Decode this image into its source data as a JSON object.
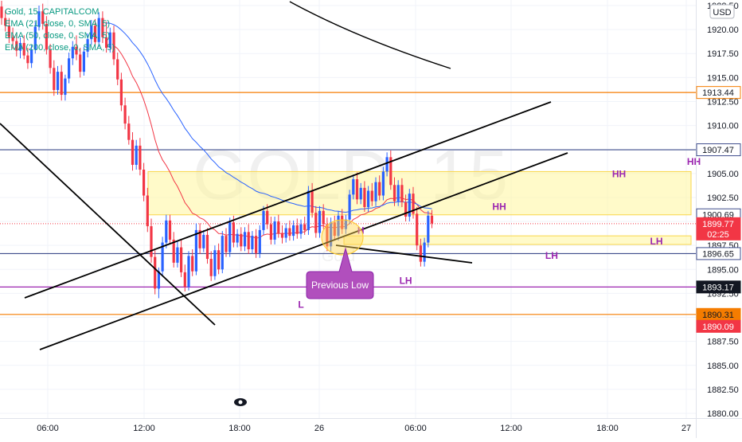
{
  "watermark": {
    "symbol": "GOLD, 15",
    "small": "Gold"
  },
  "legend": {
    "title": "Gold, 15, CAPITALCOM",
    "ema1": "EMA (21, close, 0, SMA, 5)",
    "ema2": "EMA (50, close, 0, SMA, 5)",
    "ema3": "EMA (200, close, 0, SMA, 5)"
  },
  "currency": "USD",
  "annotation": {
    "previous_low": "Previous Low"
  },
  "colors": {
    "up": "#2962ff",
    "down": "#f23645",
    "ema21": "#f23645",
    "ema50": "#2962ff",
    "ema200": "#000000",
    "orange": "#f57c00",
    "navy": "#3f4d8c",
    "purple": "#9c27b0",
    "zone": "#fff59d",
    "current_price": "#f23645"
  },
  "chart_data": {
    "type": "candlestick",
    "symbol": "Gold, 15, CAPITALCOM",
    "ylim": [
      1879.5,
      1923.0
    ],
    "y_ticks": [
      "1880.00",
      "1882.50",
      "1885.00",
      "1887.50",
      "1890.00",
      "1892.50",
      "1895.00",
      "1897.50",
      "1900.00",
      "1902.50",
      "1905.00",
      "1907.50",
      "1910.00",
      "1912.50",
      "1915.00",
      "1917.50",
      "1920.00",
      "1922.50"
    ],
    "x_ticks": [
      "06:00",
      "12:00",
      "18:00",
      "26",
      "06:00",
      "12:00",
      "18:00",
      "27"
    ],
    "price_labels": [
      {
        "value": "1913.44",
        "style": "orange-outline"
      },
      {
        "value": "1907.47",
        "style": "navy-outline"
      },
      {
        "value": "1900.69",
        "style": "navy-outline"
      },
      {
        "value": "1899.77",
        "sub": "02:25",
        "style": "red-fill"
      },
      {
        "value": "1896.65",
        "style": "navy-outline"
      },
      {
        "value": "1893.17",
        "style": "black-fill"
      },
      {
        "value": "1890.31",
        "style": "orange-fill"
      },
      {
        "value": "1890.09",
        "style": "red-fill"
      }
    ],
    "horizontal_lines": [
      {
        "y": 1913.44,
        "color": "orange"
      },
      {
        "y": 1907.47,
        "color": "navy"
      },
      {
        "y": 1896.65,
        "color": "navy"
      },
      {
        "y": 1893.17,
        "color": "purple"
      },
      {
        "y": 1890.31,
        "color": "orange"
      }
    ],
    "zones": [
      {
        "y1": 1900.69,
        "y2": 1905.2
      },
      {
        "y1": 1897.6,
        "y2": 1898.5
      }
    ],
    "swing_labels": [
      {
        "text": "HH",
        "t": 133,
        "y": 1901.2
      },
      {
        "text": "HH",
        "t": 165,
        "y": 1904.6
      },
      {
        "text": "HH",
        "t": 185,
        "y": 1905.9
      },
      {
        "text": "HH",
        "t": 210,
        "y": 1908.2
      },
      {
        "text": "H",
        "t": 96,
        "y": 1898.7
      },
      {
        "text": "LH",
        "t": 108,
        "y": 1893.5
      },
      {
        "text": "LH",
        "t": 147,
        "y": 1896.1
      },
      {
        "text": "LH",
        "t": 175,
        "y": 1897.6
      },
      {
        "text": "LH",
        "t": 202,
        "y": 1900.0
      },
      {
        "text": "L",
        "t": 80,
        "y": 1891.0
      }
    ],
    "candles": [
      {
        "o": 1922.4,
        "h": 1923.0,
        "l": 1920.5,
        "c": 1921.2
      },
      {
        "o": 1921.2,
        "h": 1922.0,
        "l": 1919.8,
        "c": 1920.4
      },
      {
        "o": 1920.4,
        "h": 1921.2,
        "l": 1918.6,
        "c": 1919.2
      },
      {
        "o": 1919.2,
        "h": 1920.2,
        "l": 1918.0,
        "c": 1918.8
      },
      {
        "o": 1918.8,
        "h": 1919.5,
        "l": 1917.2,
        "c": 1917.8
      },
      {
        "o": 1917.8,
        "h": 1919.2,
        "l": 1917.0,
        "c": 1918.6
      },
      {
        "o": 1918.6,
        "h": 1919.4,
        "l": 1916.9,
        "c": 1917.3
      },
      {
        "o": 1917.3,
        "h": 1918.1,
        "l": 1915.9,
        "c": 1916.5
      },
      {
        "o": 1916.5,
        "h": 1918.4,
        "l": 1916.0,
        "c": 1917.9
      },
      {
        "o": 1917.9,
        "h": 1920.8,
        "l": 1917.5,
        "c": 1920.3
      },
      {
        "o": 1920.3,
        "h": 1922.5,
        "l": 1919.9,
        "c": 1921.9
      },
      {
        "o": 1921.9,
        "h": 1922.7,
        "l": 1920.0,
        "c": 1920.6
      },
      {
        "o": 1920.6,
        "h": 1921.4,
        "l": 1917.4,
        "c": 1917.9
      },
      {
        "o": 1917.9,
        "h": 1918.5,
        "l": 1915.4,
        "c": 1916.0
      },
      {
        "o": 1916.0,
        "h": 1916.8,
        "l": 1913.1,
        "c": 1913.7
      },
      {
        "o": 1913.7,
        "h": 1916.2,
        "l": 1913.2,
        "c": 1915.6
      },
      {
        "o": 1915.6,
        "h": 1916.3,
        "l": 1912.6,
        "c": 1913.2
      },
      {
        "o": 1913.2,
        "h": 1915.3,
        "l": 1912.6,
        "c": 1914.9
      },
      {
        "o": 1914.9,
        "h": 1917.6,
        "l": 1914.4,
        "c": 1917.0
      },
      {
        "o": 1917.0,
        "h": 1918.8,
        "l": 1916.3,
        "c": 1918.2
      },
      {
        "o": 1918.2,
        "h": 1919.4,
        "l": 1916.8,
        "c": 1917.4
      },
      {
        "o": 1917.4,
        "h": 1918.1,
        "l": 1915.0,
        "c": 1915.6
      },
      {
        "o": 1915.6,
        "h": 1918.2,
        "l": 1915.2,
        "c": 1917.7
      },
      {
        "o": 1917.7,
        "h": 1919.6,
        "l": 1917.1,
        "c": 1919.0
      },
      {
        "o": 1919.0,
        "h": 1921.0,
        "l": 1918.4,
        "c": 1920.4
      },
      {
        "o": 1920.4,
        "h": 1921.1,
        "l": 1918.1,
        "c": 1918.7
      },
      {
        "o": 1918.7,
        "h": 1921.8,
        "l": 1918.2,
        "c": 1921.2
      },
      {
        "o": 1921.2,
        "h": 1921.9,
        "l": 1918.6,
        "c": 1919.2
      },
      {
        "o": 1919.2,
        "h": 1920.8,
        "l": 1917.6,
        "c": 1918.1
      },
      {
        "o": 1918.1,
        "h": 1920.2,
        "l": 1917.6,
        "c": 1919.7
      },
      {
        "o": 1919.7,
        "h": 1920.4,
        "l": 1916.3,
        "c": 1916.9
      },
      {
        "o": 1916.9,
        "h": 1917.6,
        "l": 1914.2,
        "c": 1914.8
      },
      {
        "o": 1914.8,
        "h": 1915.5,
        "l": 1911.5,
        "c": 1912.1
      },
      {
        "o": 1912.1,
        "h": 1912.9,
        "l": 1909.6,
        "c": 1910.2
      },
      {
        "o": 1910.2,
        "h": 1911.0,
        "l": 1908.0,
        "c": 1908.5
      },
      {
        "o": 1908.5,
        "h": 1909.3,
        "l": 1905.3,
        "c": 1905.9
      },
      {
        "o": 1905.9,
        "h": 1908.5,
        "l": 1905.4,
        "c": 1907.9
      },
      {
        "o": 1907.9,
        "h": 1908.7,
        "l": 1904.8,
        "c": 1905.4
      },
      {
        "o": 1905.4,
        "h": 1906.1,
        "l": 1902.1,
        "c": 1902.7
      },
      {
        "o": 1902.7,
        "h": 1903.5,
        "l": 1898.9,
        "c": 1899.5
      },
      {
        "o": 1899.5,
        "h": 1900.3,
        "l": 1895.7,
        "c": 1896.3
      },
      {
        "o": 1896.3,
        "h": 1897.0,
        "l": 1892.4,
        "c": 1893.0
      },
      {
        "o": 1893.0,
        "h": 1895.2,
        "l": 1892.0,
        "c": 1894.8
      },
      {
        "o": 1894.8,
        "h": 1898.4,
        "l": 1894.3,
        "c": 1897.8
      },
      {
        "o": 1897.8,
        "h": 1900.7,
        "l": 1897.2,
        "c": 1900.1
      },
      {
        "o": 1900.1,
        "h": 1900.7,
        "l": 1897.6,
        "c": 1898.1
      },
      {
        "o": 1898.1,
        "h": 1898.9,
        "l": 1895.2,
        "c": 1895.7
      },
      {
        "o": 1895.7,
        "h": 1897.9,
        "l": 1895.2,
        "c": 1897.3
      },
      {
        "o": 1897.3,
        "h": 1898.1,
        "l": 1894.2,
        "c": 1894.7
      },
      {
        "o": 1894.7,
        "h": 1895.5,
        "l": 1892.7,
        "c": 1893.2
      },
      {
        "o": 1893.2,
        "h": 1896.9,
        "l": 1892.8,
        "c": 1896.4
      },
      {
        "o": 1896.4,
        "h": 1897.1,
        "l": 1894.3,
        "c": 1894.8
      },
      {
        "o": 1894.8,
        "h": 1899.8,
        "l": 1894.4,
        "c": 1899.1
      },
      {
        "o": 1899.1,
        "h": 1899.8,
        "l": 1896.6,
        "c": 1897.2
      },
      {
        "o": 1897.2,
        "h": 1899.1,
        "l": 1896.8,
        "c": 1898.6
      },
      {
        "o": 1898.6,
        "h": 1899.3,
        "l": 1895.6,
        "c": 1896.1
      },
      {
        "o": 1896.1,
        "h": 1896.9,
        "l": 1893.8,
        "c": 1894.3
      },
      {
        "o": 1894.3,
        "h": 1897.5,
        "l": 1893.9,
        "c": 1897.0
      },
      {
        "o": 1897.0,
        "h": 1897.7,
        "l": 1894.5,
        "c": 1895.0
      },
      {
        "o": 1895.0,
        "h": 1899.0,
        "l": 1894.6,
        "c": 1898.5
      },
      {
        "o": 1898.5,
        "h": 1899.3,
        "l": 1896.3,
        "c": 1896.8
      },
      {
        "o": 1896.8,
        "h": 1900.4,
        "l": 1896.3,
        "c": 1899.9
      },
      {
        "o": 1899.9,
        "h": 1900.6,
        "l": 1897.3,
        "c": 1897.8
      },
      {
        "o": 1897.8,
        "h": 1899.2,
        "l": 1897.3,
        "c": 1898.7
      },
      {
        "o": 1898.7,
        "h": 1899.4,
        "l": 1896.9,
        "c": 1897.4
      },
      {
        "o": 1897.4,
        "h": 1899.4,
        "l": 1896.9,
        "c": 1898.9
      },
      {
        "o": 1898.9,
        "h": 1899.7,
        "l": 1896.6,
        "c": 1897.1
      },
      {
        "o": 1897.1,
        "h": 1899.0,
        "l": 1896.6,
        "c": 1898.5
      },
      {
        "o": 1898.5,
        "h": 1899.2,
        "l": 1896.2,
        "c": 1896.7
      },
      {
        "o": 1896.7,
        "h": 1899.6,
        "l": 1896.2,
        "c": 1899.1
      },
      {
        "o": 1899.1,
        "h": 1901.6,
        "l": 1898.6,
        "c": 1901.1
      },
      {
        "o": 1901.1,
        "h": 1901.8,
        "l": 1899.2,
        "c": 1899.7
      },
      {
        "o": 1899.7,
        "h": 1900.5,
        "l": 1897.6,
        "c": 1898.1
      },
      {
        "o": 1898.1,
        "h": 1900.5,
        "l": 1897.6,
        "c": 1900.0
      },
      {
        "o": 1900.0,
        "h": 1900.7,
        "l": 1898.3,
        "c": 1898.8
      },
      {
        "o": 1898.8,
        "h": 1899.6,
        "l": 1897.7,
        "c": 1898.3
      },
      {
        "o": 1898.3,
        "h": 1899.8,
        "l": 1897.8,
        "c": 1899.3
      },
      {
        "o": 1899.3,
        "h": 1900.1,
        "l": 1898.0,
        "c": 1898.5
      },
      {
        "o": 1898.5,
        "h": 1900.1,
        "l": 1898.0,
        "c": 1899.6
      },
      {
        "o": 1899.6,
        "h": 1900.3,
        "l": 1898.2,
        "c": 1898.7
      },
      {
        "o": 1898.7,
        "h": 1900.2,
        "l": 1898.2,
        "c": 1899.7
      },
      {
        "o": 1899.7,
        "h": 1900.5,
        "l": 1898.6,
        "c": 1899.1
      },
      {
        "o": 1899.1,
        "h": 1903.7,
        "l": 1898.6,
        "c": 1903.2
      },
      {
        "o": 1903.2,
        "h": 1904.0,
        "l": 1900.4,
        "c": 1900.9
      },
      {
        "o": 1900.9,
        "h": 1901.6,
        "l": 1898.3,
        "c": 1898.8
      },
      {
        "o": 1898.8,
        "h": 1901.6,
        "l": 1898.3,
        "c": 1901.1
      },
      {
        "o": 1901.1,
        "h": 1901.8,
        "l": 1899.2,
        "c": 1899.7
      },
      {
        "o": 1899.7,
        "h": 1900.4,
        "l": 1896.9,
        "c": 1897.4
      },
      {
        "o": 1897.4,
        "h": 1900.4,
        "l": 1896.9,
        "c": 1899.9
      },
      {
        "o": 1899.9,
        "h": 1900.6,
        "l": 1898.0,
        "c": 1898.5
      },
      {
        "o": 1898.5,
        "h": 1901.1,
        "l": 1898.0,
        "c": 1900.6
      },
      {
        "o": 1900.6,
        "h": 1901.3,
        "l": 1898.7,
        "c": 1899.2
      },
      {
        "o": 1899.2,
        "h": 1900.7,
        "l": 1898.7,
        "c": 1900.2
      },
      {
        "o": 1900.2,
        "h": 1903.3,
        "l": 1899.7,
        "c": 1902.8
      },
      {
        "o": 1902.8,
        "h": 1904.9,
        "l": 1902.3,
        "c": 1904.4
      },
      {
        "o": 1904.4,
        "h": 1905.1,
        "l": 1901.8,
        "c": 1902.3
      },
      {
        "o": 1902.3,
        "h": 1904.0,
        "l": 1901.8,
        "c": 1903.5
      },
      {
        "o": 1903.5,
        "h": 1904.2,
        "l": 1901.0,
        "c": 1901.5
      },
      {
        "o": 1901.5,
        "h": 1903.7,
        "l": 1901.0,
        "c": 1903.2
      },
      {
        "o": 1903.2,
        "h": 1904.0,
        "l": 1901.6,
        "c": 1902.1
      },
      {
        "o": 1902.1,
        "h": 1904.6,
        "l": 1901.6,
        "c": 1904.1
      },
      {
        "o": 1904.1,
        "h": 1904.8,
        "l": 1902.2,
        "c": 1902.7
      },
      {
        "o": 1902.7,
        "h": 1905.7,
        "l": 1902.2,
        "c": 1905.2
      },
      {
        "o": 1905.2,
        "h": 1907.2,
        "l": 1904.7,
        "c": 1906.7
      },
      {
        "o": 1906.7,
        "h": 1907.4,
        "l": 1903.3,
        "c": 1903.8
      },
      {
        "o": 1903.8,
        "h": 1904.6,
        "l": 1901.6,
        "c": 1902.1
      },
      {
        "o": 1902.1,
        "h": 1904.3,
        "l": 1901.6,
        "c": 1903.8
      },
      {
        "o": 1903.8,
        "h": 1904.5,
        "l": 1901.5,
        "c": 1902.0
      },
      {
        "o": 1902.0,
        "h": 1902.8,
        "l": 1900.0,
        "c": 1900.5
      },
      {
        "o": 1900.5,
        "h": 1903.4,
        "l": 1900.0,
        "c": 1902.9
      },
      {
        "o": 1902.9,
        "h": 1903.6,
        "l": 1900.3,
        "c": 1900.8
      },
      {
        "o": 1900.8,
        "h": 1901.5,
        "l": 1897.0,
        "c": 1897.5
      },
      {
        "o": 1897.5,
        "h": 1898.2,
        "l": 1895.3,
        "c": 1895.8
      },
      {
        "o": 1895.8,
        "h": 1898.3,
        "l": 1895.3,
        "c": 1897.8
      },
      {
        "o": 1897.8,
        "h": 1901.1,
        "l": 1897.3,
        "c": 1900.6
      },
      {
        "o": 1900.6,
        "h": 1901.2,
        "l": 1899.3,
        "c": 1899.8
      }
    ]
  }
}
